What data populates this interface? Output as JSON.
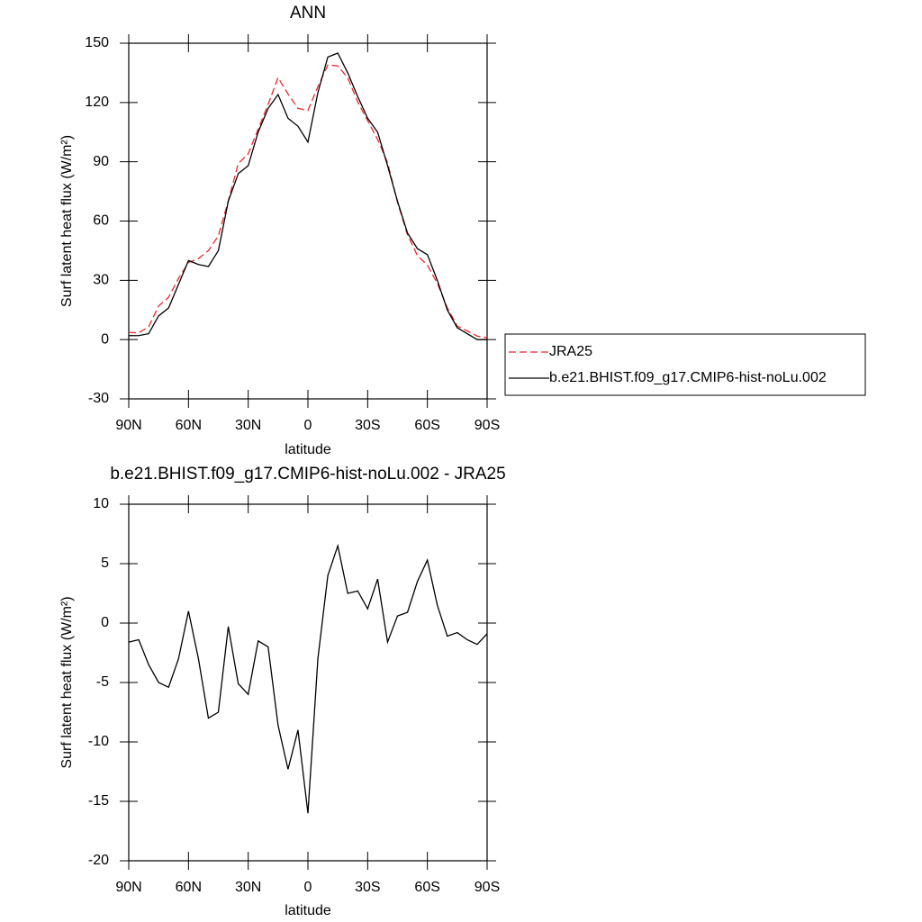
{
  "chart_data": [
    {
      "type": "line",
      "title": "ANN",
      "xlabel": "latitude",
      "ylabel": "Surf latent heat flux (W/m²)",
      "x": [
        90,
        85,
        80,
        75,
        70,
        65,
        60,
        55,
        50,
        45,
        40,
        35,
        30,
        25,
        20,
        15,
        10,
        5,
        0,
        -5,
        -10,
        -15,
        -20,
        -25,
        -30,
        -35,
        -40,
        -45,
        -50,
        -55,
        -60,
        -65,
        -70,
        -75,
        -80,
        -85,
        -90
      ],
      "series": [
        {
          "name": "JRA25",
          "color": "#e8282b",
          "dash": true,
          "values": [
            3.6,
            3.4,
            6.5,
            17,
            21.4,
            31,
            39,
            41,
            45,
            52.5,
            70.3,
            89.1,
            94,
            106.5,
            119,
            132.6,
            124.3,
            117,
            116,
            128,
            139,
            138.5,
            132.5,
            120.3,
            110.8,
            101.3,
            89.6,
            69.4,
            53.1,
            42.5,
            37.7,
            28.5,
            16.1,
            6.8,
            4.4,
            1.8,
            0.9
          ]
        },
        {
          "name": "b.e21.BHIST.f09_g17.CMIP6-hist-noLu.002",
          "color": "#000000",
          "dash": false,
          "values": [
            2,
            2,
            3,
            12,
            16,
            28,
            40,
            38,
            37,
            45,
            70,
            84,
            88,
            105,
            117,
            124,
            112,
            108,
            100,
            125,
            143,
            145,
            135,
            123,
            112,
            105,
            88,
            70,
            54,
            46,
            43,
            30,
            15,
            6,
            3,
            0,
            0
          ]
        }
      ],
      "xlim": [
        90,
        -90
      ],
      "xticks": [
        {
          "value": 90,
          "label": "90N"
        },
        {
          "value": 60,
          "label": "60N"
        },
        {
          "value": 30,
          "label": "30N"
        },
        0,
        {
          "value": -30,
          "label": "30S"
        },
        {
          "value": -60,
          "label": "60S"
        },
        {
          "value": -90,
          "label": "90S"
        }
      ],
      "ylim": [
        -30,
        150
      ],
      "yticks": [
        -30,
        0,
        30,
        60,
        90,
        120,
        150
      ]
    },
    {
      "type": "line",
      "title": "b.e21.BHIST.f09_g17.CMIP6-hist-noLu.002 - JRA25",
      "xlabel": "latitude",
      "ylabel": "Surf latent heat flux (W/m²)",
      "x": [
        90,
        85,
        80,
        75,
        70,
        65,
        60,
        55,
        50,
        45,
        40,
        35,
        30,
        25,
        20,
        15,
        10,
        5,
        0,
        -5,
        -10,
        -15,
        -20,
        -25,
        -30,
        -35,
        -40,
        -45,
        -50,
        -55,
        -60,
        -65,
        -70,
        -75,
        -80,
        -85,
        -90
      ],
      "values": [
        -1.6,
        -1.4,
        -3.5,
        -5,
        -5.4,
        -3,
        1,
        -3,
        -8,
        -7.5,
        -0.3,
        -5.1,
        -6,
        -1.5,
        -2,
        -8.6,
        -12.3,
        -9,
        -16,
        -3,
        4,
        6.5,
        2.5,
        2.7,
        1.2,
        3.7,
        -1.6,
        0.6,
        0.9,
        3.5,
        5.3,
        1.5,
        -1.1,
        -0.8,
        -1.4,
        -1.8,
        -0.9
      ],
      "color": "#000000",
      "xlim": [
        90,
        -90
      ],
      "xticks": [
        {
          "value": 90,
          "label": "90N"
        },
        {
          "value": 60,
          "label": "60N"
        },
        {
          "value": 30,
          "label": "30N"
        },
        0,
        {
          "value": -30,
          "label": "30S"
        },
        {
          "value": -60,
          "label": "60S"
        },
        {
          "value": -90,
          "label": "90S"
        }
      ],
      "ylim": [
        -20,
        10
      ],
      "yticks": [
        -20,
        -15,
        -10,
        -5,
        0,
        5,
        10
      ]
    }
  ]
}
